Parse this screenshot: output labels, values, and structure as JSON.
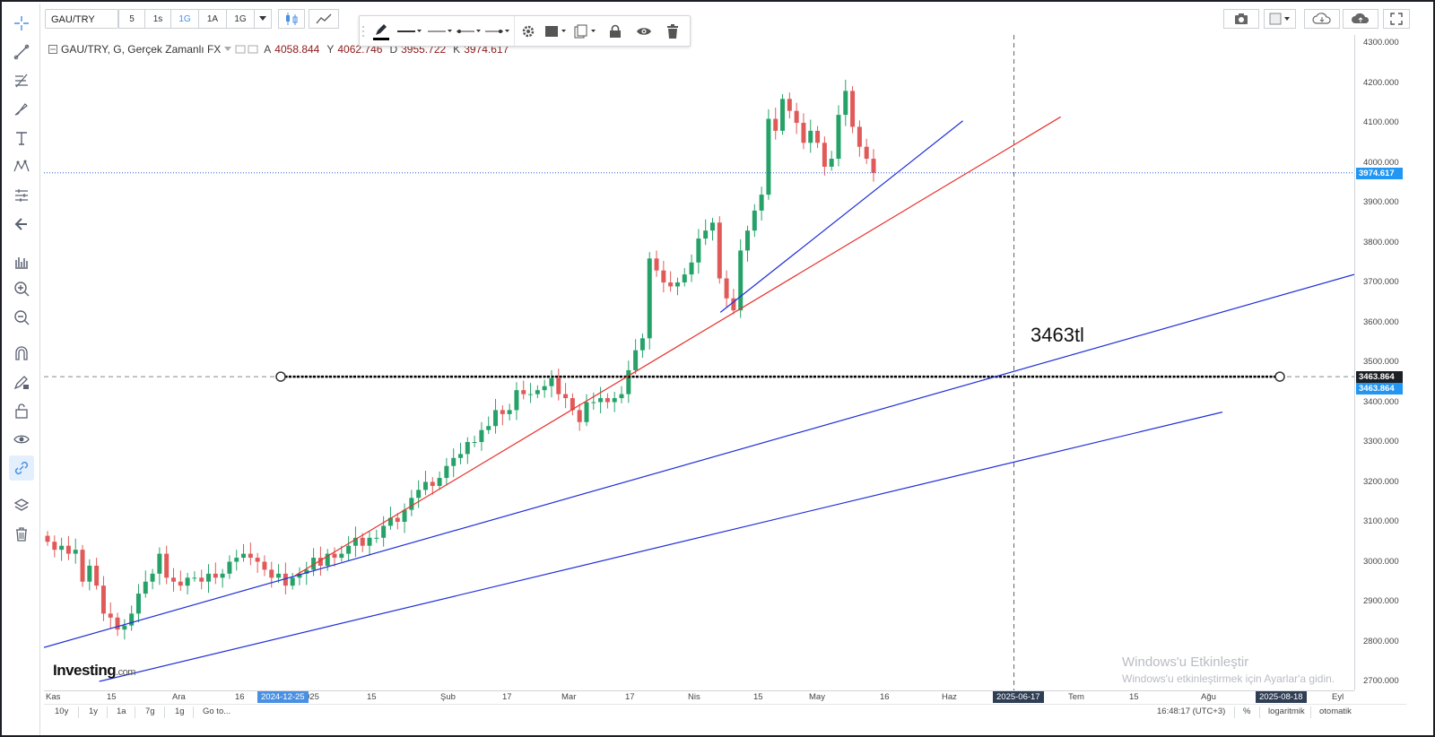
{
  "toolbar": {
    "symbol": "GAU/TRY",
    "intervals": [
      "5",
      "1s",
      "1G",
      "1A",
      "1G"
    ],
    "selected_interval": "1G"
  },
  "legend": {
    "title": "GAU/TRY, G, Gerçek Zamanlı FX",
    "open_label": "A",
    "open": "4058.844",
    "high_label": "Y",
    "high": "4062.746",
    "low_label": "D",
    "low": "3955.722",
    "close_label": "K",
    "close": "3974.617"
  },
  "annotation": "3463tl",
  "price_axis": {
    "ticks": [
      "4300.000",
      "4200.000",
      "4100.000",
      "4000.000",
      "3900.000",
      "3800.000",
      "3700.000",
      "3600.000",
      "3500.000",
      "3400.000",
      "3300.000",
      "3200.000",
      "3100.000",
      "3000.000",
      "2900.000",
      "2800.000",
      "2700.000"
    ],
    "current_price_label": "3974.617",
    "hline_label_1": "3463.864",
    "hline_label_2": "3463.864"
  },
  "time_axis": {
    "ticks": [
      "Kas",
      "15",
      "Ara",
      "16",
      "025",
      "15",
      "Şub",
      "17",
      "Mar",
      "17",
      "Nis",
      "15",
      "May",
      "16",
      "Haz",
      "Tem",
      "15",
      "Ağu",
      "Eyl"
    ],
    "badges": [
      "2024-12-25",
      "2025-06-17",
      "2025-08-18"
    ]
  },
  "bottom_bar": {
    "ranges": [
      "10y",
      "1y",
      "1a",
      "7g",
      "1g"
    ],
    "goto": "Go to...",
    "time": "16:48:17 (UTC+3)",
    "percent": "%",
    "log": "logaritmik",
    "auto": "otomatik"
  },
  "logo": {
    "brand": "Investing",
    "suffix": ".com"
  },
  "watermark": {
    "title": "Windows'u Etkinleştir",
    "subtitle": "Windows'u etkinleştirmek için Ayarlar'a gidin."
  },
  "colors": {
    "up": "#26a269",
    "down": "#e05a5a",
    "trend_blue": "#1f2fd6",
    "trend_red": "#e8322c",
    "accent": "#4a90e2",
    "badge_dark": "#2f3e55",
    "badge_blue": "#2196f3"
  },
  "chart_data": {
    "type": "candlestick",
    "title": "GAU/TRY, G, Gerçek Zamanlı FX",
    "ylim": [
      2700,
      4300
    ],
    "y_scale": "linear",
    "x_start": "2024-11-01",
    "x_end": "2025-09-05",
    "grid": false,
    "close_series": [
      3050,
      3030,
      3040,
      3020,
      3030,
      2950,
      2990,
      2940,
      2870,
      2860,
      2830,
      2840,
      2870,
      2920,
      2950,
      2970,
      3020,
      2960,
      2950,
      2940,
      2960,
      2960,
      2950,
      2970,
      2960,
      2970,
      3000,
      3010,
      3020,
      3010,
      3000,
      2980,
      2960,
      2970,
      2940,
      2960,
      2970,
      2980,
      3010,
      2990,
      3020,
      3010,
      3020,
      3040,
      3060,
      3040,
      3060,
      3060,
      3090,
      3110,
      3100,
      3130,
      3160,
      3180,
      3200,
      3190,
      3210,
      3240,
      3260,
      3270,
      3300,
      3300,
      3330,
      3340,
      3380,
      3370,
      3380,
      3430,
      3420,
      3420,
      3430,
      3440,
      3460,
      3420,
      3410,
      3380,
      3350,
      3400,
      3400,
      3410,
      3400,
      3410,
      3420,
      3480,
      3530,
      3560,
      3760,
      3730,
      3700,
      3690,
      3700,
      3720,
      3750,
      3810,
      3830,
      3850,
      3710,
      3660,
      3630,
      3780,
      3830,
      3880,
      3920,
      4110,
      4080,
      4160,
      4130,
      4100,
      4050,
      4080,
      4050,
      3990,
      4010,
      4120,
      4180,
      4090,
      4040,
      4010,
      3974.617
    ],
    "horizontal_line": 3463.864,
    "last_close": 3974.617,
    "trendlines": [
      {
        "color": "blue",
        "from": [
          "2024-11-01",
          2785
        ],
        "to": [
          "2025-09-05",
          3720
        ]
      },
      {
        "color": "blue",
        "from": [
          "2024-11-14",
          2700
        ],
        "to": [
          "2025-08-05",
          3375
        ]
      },
      {
        "color": "red",
        "from": [
          "2024-12-30",
          2965
        ],
        "to": [
          "2025-06-28",
          4115
        ]
      },
      {
        "color": "blue",
        "from": [
          "2025-04-09",
          3625
        ],
        "to": [
          "2025-06-05",
          4105
        ]
      }
    ]
  }
}
